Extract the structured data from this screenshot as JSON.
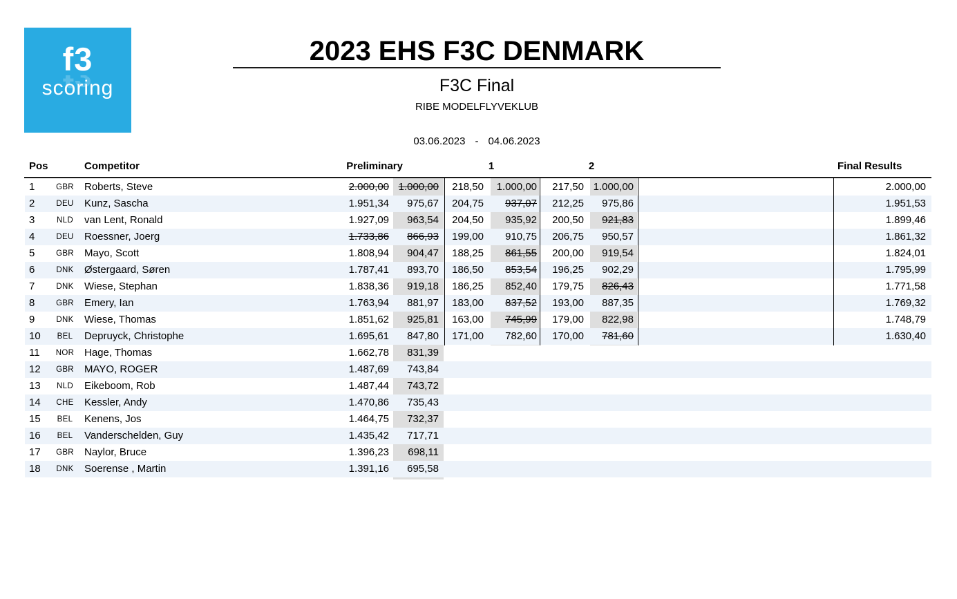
{
  "logo": {
    "line1": "f3",
    "line2": "scoring"
  },
  "header": {
    "title": "2023 EHS F3C DENMARK",
    "subtitle": "F3C Final",
    "club": "RIBE MODELFLYVEKLUB",
    "date_from": "03.06.2023",
    "date_separator": "-",
    "date_to": "04.06.2023"
  },
  "colors": {
    "logo_bg": "#29ABE2",
    "row_alt": "#EDF3FA",
    "score_column_bg": "#DEDEDE",
    "rule": "#1A1A1A"
  },
  "table": {
    "columns": {
      "pos": "Pos",
      "competitor": "Competitor",
      "preliminary": "Preliminary",
      "round1": "1",
      "round2": "2",
      "final": "Final Results"
    },
    "rows": [
      {
        "pos": "1",
        "country": "GBR",
        "name": "Roberts, Steve",
        "prelim_raw": "2.000,00",
        "prelim_norm": "1.000,00",
        "r1_raw": "218,50",
        "r1_norm": "1.000,00",
        "r2_raw": "217,50",
        "r2_norm": "1.000,00",
        "final": "2.000,00",
        "struck": [
          "prelim_raw",
          "prelim_norm"
        ]
      },
      {
        "pos": "2",
        "country": "DEU",
        "name": "Kunz, Sascha",
        "prelim_raw": "1.951,34",
        "prelim_norm": "975,67",
        "r1_raw": "204,75",
        "r1_norm": "937,07",
        "r2_raw": "212,25",
        "r2_norm": "975,86",
        "final": "1.951,53",
        "struck": [
          "r1_norm"
        ]
      },
      {
        "pos": "3",
        "country": "NLD",
        "name": "van Lent, Ronald",
        "prelim_raw": "1.927,09",
        "prelim_norm": "963,54",
        "r1_raw": "204,50",
        "r1_norm": "935,92",
        "r2_raw": "200,50",
        "r2_norm": "921,83",
        "final": "1.899,46",
        "struck": [
          "r2_norm"
        ]
      },
      {
        "pos": "4",
        "country": "DEU",
        "name": "Roessner, Joerg",
        "prelim_raw": "1.733,86",
        "prelim_norm": "866,93",
        "r1_raw": "199,00",
        "r1_norm": "910,75",
        "r2_raw": "206,75",
        "r2_norm": "950,57",
        "final": "1.861,32",
        "struck": [
          "prelim_raw",
          "prelim_norm"
        ]
      },
      {
        "pos": "5",
        "country": "GBR",
        "name": "Mayo, Scott",
        "prelim_raw": "1.808,94",
        "prelim_norm": "904,47",
        "r1_raw": "188,25",
        "r1_norm": "861,55",
        "r2_raw": "200,00",
        "r2_norm": "919,54",
        "final": "1.824,01",
        "struck": [
          "r1_norm"
        ]
      },
      {
        "pos": "6",
        "country": "DNK",
        "name": "Østergaard, Søren",
        "prelim_raw": "1.787,41",
        "prelim_norm": "893,70",
        "r1_raw": "186,50",
        "r1_norm": "853,54",
        "r2_raw": "196,25",
        "r2_norm": "902,29",
        "final": "1.795,99",
        "struck": [
          "r1_norm"
        ]
      },
      {
        "pos": "7",
        "country": "DNK",
        "name": "Wiese, Stephan",
        "prelim_raw": "1.838,36",
        "prelim_norm": "919,18",
        "r1_raw": "186,25",
        "r1_norm": "852,40",
        "r2_raw": "179,75",
        "r2_norm": "826,43",
        "final": "1.771,58",
        "struck": [
          "r2_norm"
        ]
      },
      {
        "pos": "8",
        "country": "GBR",
        "name": "Emery, Ian",
        "prelim_raw": "1.763,94",
        "prelim_norm": "881,97",
        "r1_raw": "183,00",
        "r1_norm": "837,52",
        "r2_raw": "193,00",
        "r2_norm": "887,35",
        "final": "1.769,32",
        "struck": [
          "r1_norm"
        ]
      },
      {
        "pos": "9",
        "country": "DNK",
        "name": "Wiese, Thomas",
        "prelim_raw": "1.851,62",
        "prelim_norm": "925,81",
        "r1_raw": "163,00",
        "r1_norm": "745,99",
        "r2_raw": "179,00",
        "r2_norm": "822,98",
        "final": "1.748,79",
        "struck": [
          "r1_norm"
        ]
      },
      {
        "pos": "10",
        "country": "BEL",
        "name": "Depruyck, Christophe",
        "prelim_raw": "1.695,61",
        "prelim_norm": "847,80",
        "r1_raw": "171,00",
        "r1_norm": "782,60",
        "r2_raw": "170,00",
        "r2_norm": "781,60",
        "final": "1.630,40",
        "struck": [
          "r2_norm"
        ]
      },
      {
        "pos": "11",
        "country": "NOR",
        "name": "Hage, Thomas",
        "prelim_raw": "1.662,78",
        "prelim_norm": "831,39",
        "r1_raw": "",
        "r1_norm": "",
        "r2_raw": "",
        "r2_norm": "",
        "final": "",
        "struck": []
      },
      {
        "pos": "12",
        "country": "GBR",
        "name": "MAYO, ROGER",
        "prelim_raw": "1.487,69",
        "prelim_norm": "743,84",
        "r1_raw": "",
        "r1_norm": "",
        "r2_raw": "",
        "r2_norm": "",
        "final": "",
        "struck": []
      },
      {
        "pos": "13",
        "country": "NLD",
        "name": "Eikeboom, Rob",
        "prelim_raw": "1.487,44",
        "prelim_norm": "743,72",
        "r1_raw": "",
        "r1_norm": "",
        "r2_raw": "",
        "r2_norm": "",
        "final": "",
        "struck": []
      },
      {
        "pos": "14",
        "country": "CHE",
        "name": "Kessler, Andy",
        "prelim_raw": "1.470,86",
        "prelim_norm": "735,43",
        "r1_raw": "",
        "r1_norm": "",
        "r2_raw": "",
        "r2_norm": "",
        "final": "",
        "struck": []
      },
      {
        "pos": "15",
        "country": "BEL",
        "name": "Kenens, Jos",
        "prelim_raw": "1.464,75",
        "prelim_norm": "732,37",
        "r1_raw": "",
        "r1_norm": "",
        "r2_raw": "",
        "r2_norm": "",
        "final": "",
        "struck": []
      },
      {
        "pos": "16",
        "country": "BEL",
        "name": "Vanderschelden, Guy",
        "prelim_raw": "1.435,42",
        "prelim_norm": "717,71",
        "r1_raw": "",
        "r1_norm": "",
        "r2_raw": "",
        "r2_norm": "",
        "final": "",
        "struck": []
      },
      {
        "pos": "17",
        "country": "GBR",
        "name": "Naylor, Bruce",
        "prelim_raw": "1.396,23",
        "prelim_norm": "698,11",
        "r1_raw": "",
        "r1_norm": "",
        "r2_raw": "",
        "r2_norm": "",
        "final": "",
        "struck": []
      },
      {
        "pos": "18",
        "country": "DNK",
        "name": "Soerense , Martin",
        "prelim_raw": "1.391,16",
        "prelim_norm": "695,58",
        "r1_raw": "",
        "r1_norm": "",
        "r2_raw": "",
        "r2_norm": "",
        "final": "",
        "struck": []
      }
    ]
  }
}
